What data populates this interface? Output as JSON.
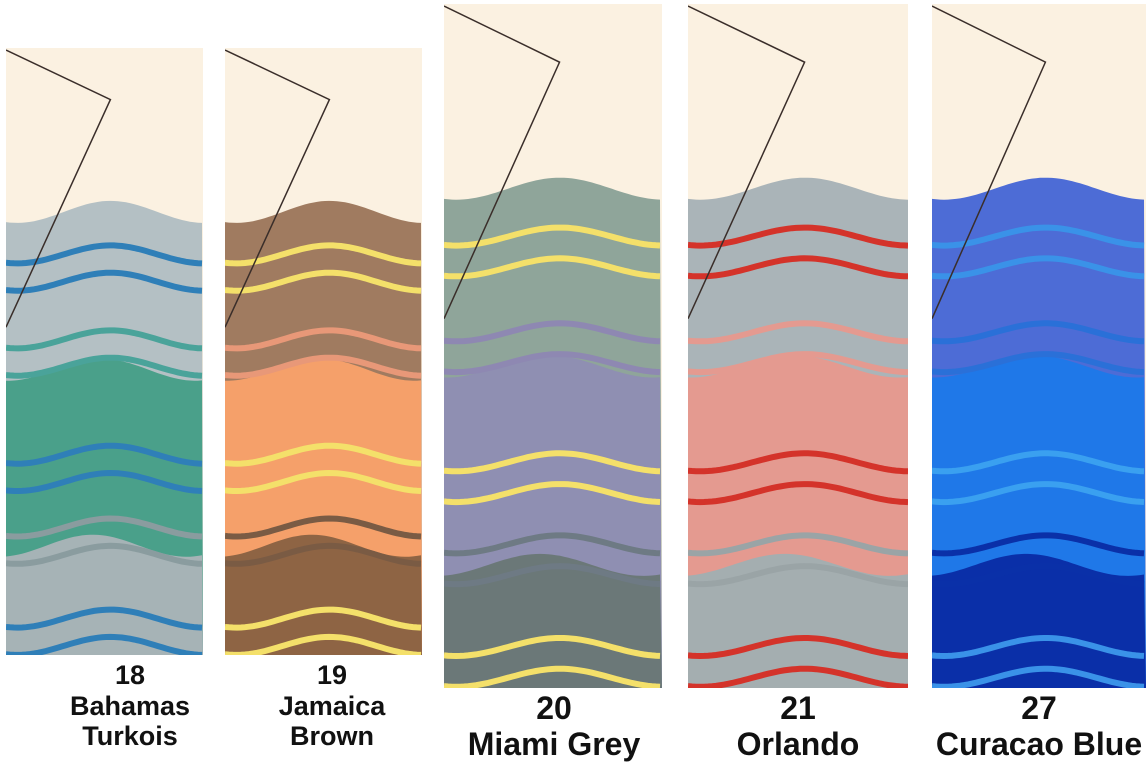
{
  "swatches": [
    {
      "number": "18",
      "name_lines": [
        "Bahamas",
        "Turkois"
      ],
      "colors": {
        "paper": "#fbf1e1",
        "bands": [
          "#b4c0c4",
          "#4aa08a",
          "#a6b3b6"
        ],
        "lines": [
          "#2f7fb8",
          "#4aa39a",
          "#2f7fb8",
          "#8a9c9f",
          "#2f7fb8"
        ]
      }
    },
    {
      "number": "19",
      "name_lines": [
        "Jamaica",
        "Brown"
      ],
      "colors": {
        "paper": "#fbf1e1",
        "bands": [
          "#a07b60",
          "#f5a06a",
          "#8e6444"
        ],
        "lines": [
          "#f4e06a",
          "#e89878",
          "#f4e06a",
          "#7a5b44",
          "#f4e06a"
        ]
      }
    },
    {
      "number": "20",
      "name_lines": [
        "Miami Grey"
      ],
      "colors": {
        "paper": "#fbf1e1",
        "bands": [
          "#8fa59a",
          "#8f8fb2",
          "#6b7878"
        ],
        "lines": [
          "#f4e06a",
          "#8e88b2",
          "#f4e06a",
          "#6e7a84",
          "#f4e06a"
        ]
      }
    },
    {
      "number": "21",
      "name_lines": [
        "Orlando"
      ],
      "colors": {
        "paper": "#fbf1e1",
        "bands": [
          "#aab4b8",
          "#e49a90",
          "#a4aeb0"
        ],
        "lines": [
          "#d4332a",
          "#e49a90",
          "#d4332a",
          "#9aa4a6",
          "#d4332a"
        ]
      }
    },
    {
      "number": "27",
      "name_lines": [
        "Curacao Blue"
      ],
      "colors": {
        "paper": "#fbf1e1",
        "bands": [
          "#4d6cd6",
          "#1f78e8",
          "#0a2fa8"
        ],
        "lines": [
          "#3a92e8",
          "#2a70d8",
          "#3aa0f0",
          "#0a30a8",
          "#3a92e8"
        ]
      }
    }
  ]
}
